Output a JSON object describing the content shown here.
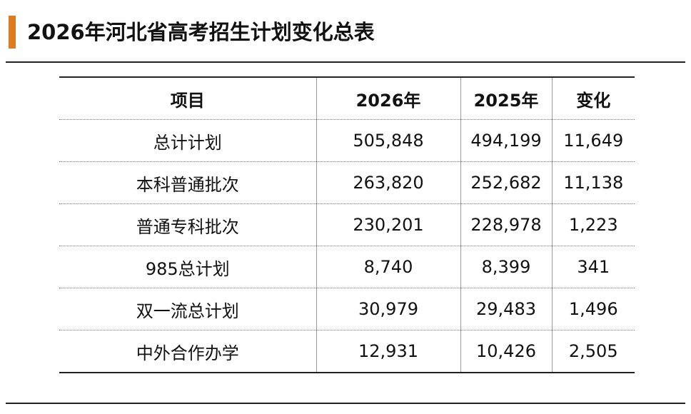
{
  "header": {
    "title": "2026年河北省高考招生计划变化总表"
  },
  "table": {
    "columns": [
      "项目",
      "2026年",
      "2025年",
      "变化"
    ],
    "rows": [
      [
        "总计计划",
        "505,848",
        "494,199",
        "11,649"
      ],
      [
        "本科普通批次",
        "263,820",
        "252,682",
        "11,138"
      ],
      [
        "普通专科批次",
        "230,201",
        "228,978",
        "1,223"
      ],
      [
        "985总计划",
        "8,740",
        "8,399",
        "341"
      ],
      [
        "双一流总计划",
        "30,979",
        "29,483",
        "1,496"
      ],
      [
        "中外合作办学",
        "12,931",
        "10,426",
        "2,505"
      ]
    ]
  }
}
